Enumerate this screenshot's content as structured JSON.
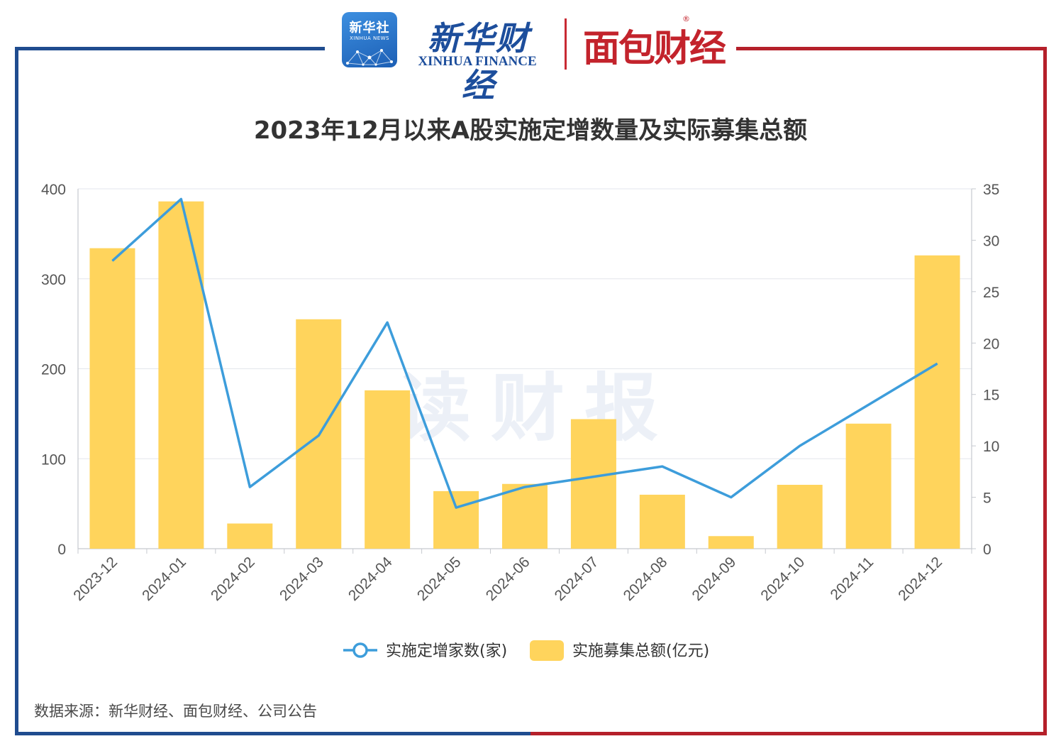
{
  "header": {
    "logo_badge_text": "新华社",
    "logo_badge_sub": "XINHUA NEWS",
    "brand_cn": "新华财经",
    "brand_en": "XINHUA FINANCE",
    "brand2": "面包财经",
    "brand2_reg": "®"
  },
  "watermark": "读财报",
  "source": "数据来源：新华财经、面包财经、公司公告",
  "colors": {
    "bar": "#ffd45c",
    "line": "#3d9ddb",
    "frame_blue": "#1f4c8f",
    "frame_red": "#b5202a"
  },
  "chart_data": {
    "type": "bar",
    "title": "2023年12月以来A股实施定增数量及实际募集总额",
    "categories": [
      "2023-12",
      "2024-01",
      "2024-02",
      "2024-03",
      "2024-04",
      "2024-05",
      "2024-06",
      "2024-07",
      "2024-08",
      "2024-09",
      "2024-10",
      "2024-11",
      "2024-12"
    ],
    "series": [
      {
        "name": "实施募集总额(亿元)",
        "type": "bar",
        "axis": "left",
        "values": [
          334,
          386,
          28,
          255,
          176,
          64,
          72,
          144,
          60,
          14,
          71,
          139,
          326
        ]
      },
      {
        "name": "实施定增家数(家)",
        "type": "line",
        "axis": "right",
        "values": [
          28,
          34,
          6,
          11,
          22,
          4,
          6,
          7,
          8,
          5,
          10,
          14,
          18
        ]
      }
    ],
    "y_left": {
      "min": 0,
      "max": 400,
      "ticks": [
        0,
        100,
        200,
        300,
        400
      ]
    },
    "y_right": {
      "min": 0,
      "max": 35,
      "ticks": [
        0,
        5,
        10,
        15,
        20,
        25,
        30,
        35
      ]
    },
    "legend": [
      "实施定增家数(家)",
      "实施募集总额(亿元)"
    ],
    "legend_position": "bottom",
    "grid": true
  }
}
